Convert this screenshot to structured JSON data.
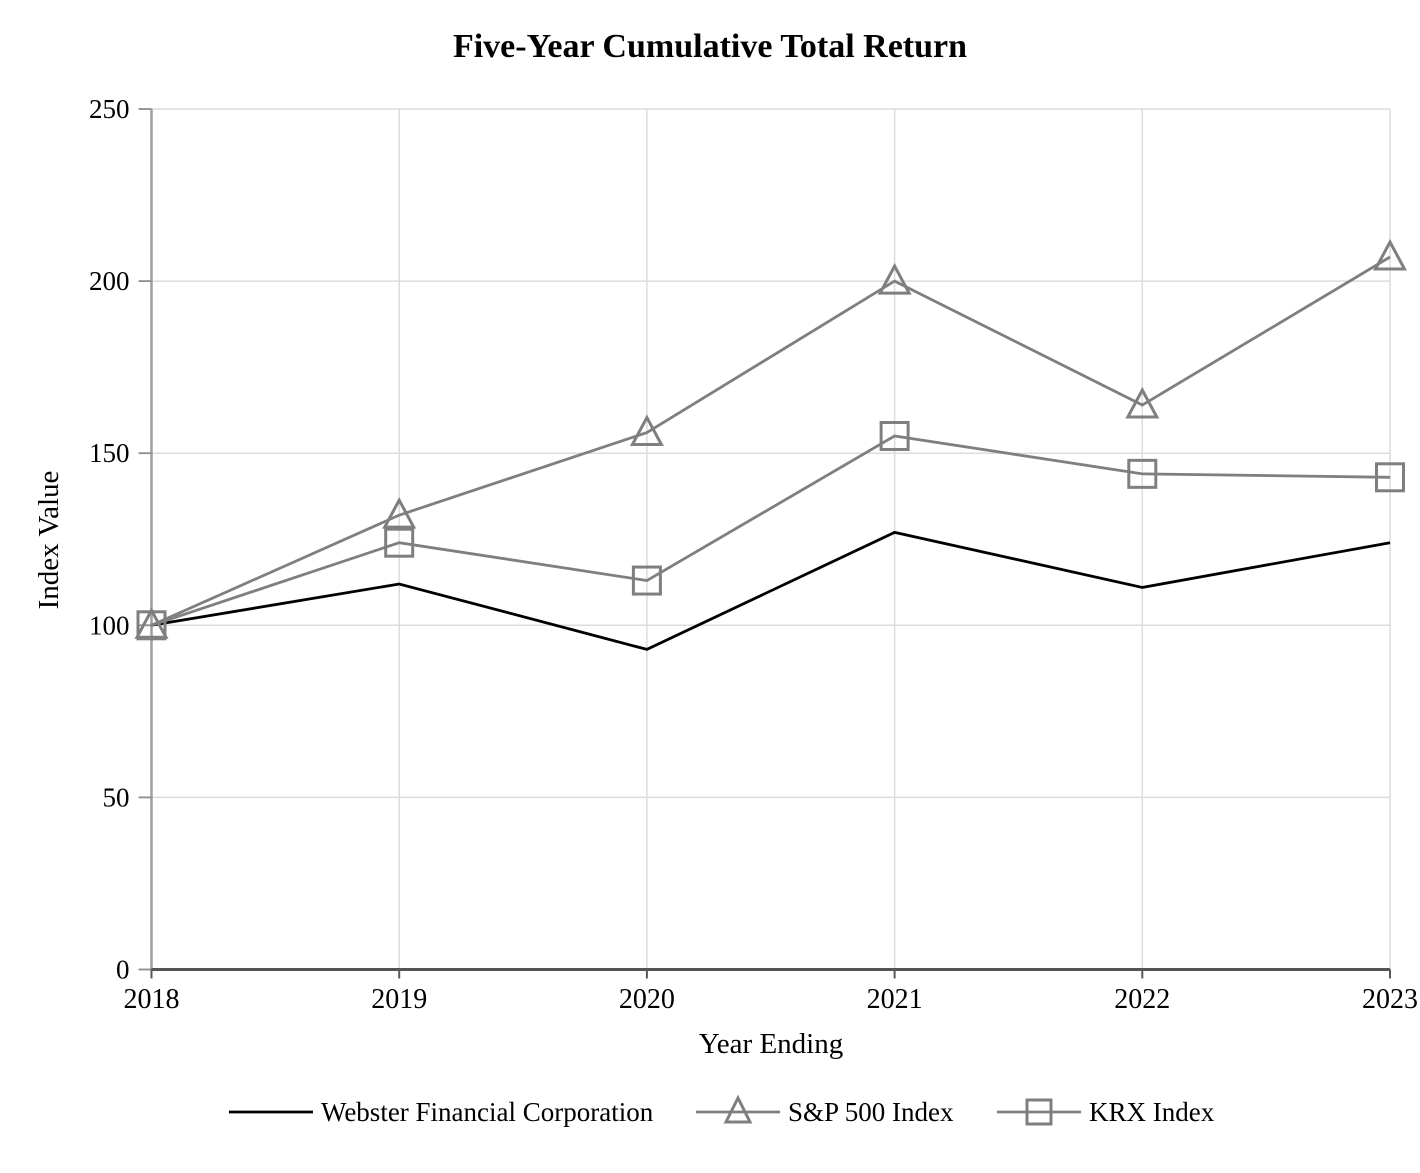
{
  "page": {
    "background": "#ffffff"
  },
  "chart_data": {
    "type": "line",
    "title": "Five-Year Cumulative Total Return",
    "xlabel": "Year Ending",
    "ylabel": "Index Value",
    "categories": [
      "2018",
      "2019",
      "2020",
      "2021",
      "2022",
      "2023"
    ],
    "ylim": [
      0,
      250
    ],
    "yticks": [
      0,
      50,
      100,
      150,
      200,
      250
    ],
    "grid": true,
    "legend_position": "bottom",
    "series": [
      {
        "name": "Webster Financial Corporation",
        "color": "#000000",
        "marker": "none",
        "values": [
          100,
          112,
          93,
          127,
          111,
          124
        ]
      },
      {
        "name": "S&P 500 Index",
        "color": "#7f7f7f",
        "marker": "triangle",
        "values": [
          100,
          132,
          156,
          200,
          164,
          207
        ]
      },
      {
        "name": "KRX Index",
        "color": "#7f7f7f",
        "marker": "square",
        "values": [
          100,
          124,
          113,
          155,
          144,
          143
        ]
      }
    ]
  },
  "colors": {
    "series_gray": "#7f7f7f",
    "series_black": "#000000",
    "gridline": "#dcdcdc",
    "y_axis": "#9e9e9e",
    "x_axis": "#545454",
    "y_tick": "#8c8c8c",
    "x_tick": "#595959",
    "text": "#000000"
  }
}
